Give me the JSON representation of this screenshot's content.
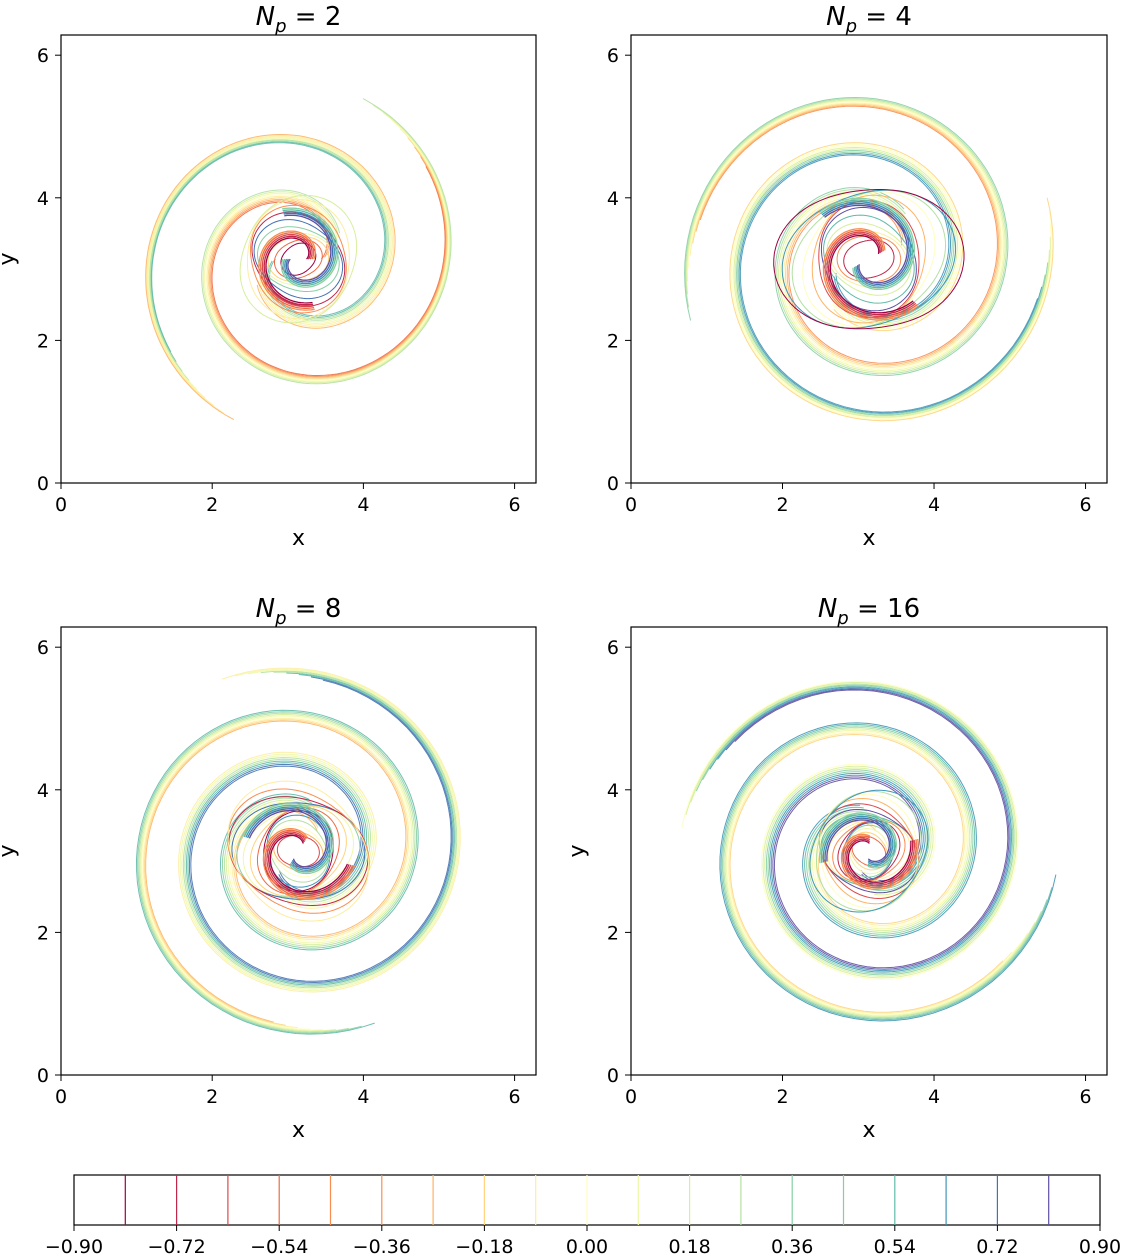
{
  "figure": {
    "colormap": "Spectral",
    "contour_levels": [
      -0.9,
      -0.81,
      -0.72,
      -0.63,
      -0.54,
      -0.45,
      -0.36,
      -0.27,
      -0.18,
      -0.09,
      0.0,
      0.09,
      0.18,
      0.27,
      0.36,
      0.45,
      0.54,
      0.63,
      0.72,
      0.81,
      0.9
    ],
    "level_colors": [
      "#9e0142",
      "#c0274a",
      "#dc494c",
      "#ee6a43",
      "#f88d52",
      "#fdb466",
      "#fed481",
      "#feeda1",
      "#fffebe",
      "#eff8a8",
      "#d7ef9b",
      "#b3e0a2",
      "#87cfa4",
      "#5fbaa8",
      "#3f96b7",
      "#4372b2",
      "#5e4fa2"
    ]
  },
  "chart_data": [
    {
      "type": "contour",
      "title": "N_p = 2",
      "title_main": "N",
      "title_sub": "p",
      "title_rest": " = 2",
      "xlabel": "x",
      "ylabel": "y",
      "xlim": [
        0,
        6.2832
      ],
      "ylim": [
        0,
        6.2832
      ],
      "xticks": [
        "0",
        "2",
        "4",
        "6"
      ],
      "yticks": [
        "0",
        "2",
        "4",
        "6"
      ],
      "center": [
        3.14,
        3.14
      ],
      "spiral_turns": 1.1,
      "outer_radius": 2.2,
      "core_radius": 0.9
    },
    {
      "type": "contour",
      "title": "N_p = 4",
      "title_main": "N",
      "title_sub": "p",
      "title_rest": " = 4",
      "xlabel": "x",
      "ylabel": "",
      "xlim": [
        0,
        6.2832
      ],
      "ylim": [
        0,
        6.2832
      ],
      "xticks": [
        "0",
        "2",
        "4",
        "6"
      ],
      "yticks": [
        "0",
        "2",
        "4",
        "6"
      ],
      "center": [
        3.14,
        3.14
      ],
      "spiral_turns": 1.4,
      "outer_radius": 2.4,
      "core_radius": 1.2
    },
    {
      "type": "contour",
      "title": "N_p = 8",
      "title_main": "N",
      "title_sub": "p",
      "title_rest": " = 8",
      "xlabel": "x",
      "ylabel": "y",
      "xlim": [
        0,
        6.2832
      ],
      "ylim": [
        0,
        6.2832
      ],
      "xticks": [
        "0",
        "2",
        "4",
        "6"
      ],
      "yticks": [
        "0",
        "2",
        "4",
        "6"
      ],
      "center": [
        3.14,
        3.14
      ],
      "spiral_turns": 1.6,
      "outer_radius": 2.4,
      "core_radius": 1.0
    },
    {
      "type": "contour",
      "title": "N_p = 16",
      "title_main": "N",
      "title_sub": "p",
      "title_rest": " = 16",
      "xlabel": "x",
      "ylabel": "y",
      "xlim": [
        0,
        6.2832
      ],
      "ylim": [
        0,
        6.2832
      ],
      "xticks": [
        "0",
        "2",
        "4",
        "6"
      ],
      "yticks": [
        "0",
        "2",
        "4",
        "6"
      ],
      "center": [
        3.14,
        3.14
      ],
      "spiral_turns": 1.7,
      "outer_radius": 2.4,
      "core_radius": 0.85
    }
  ],
  "colorbar": {
    "range": [
      -0.9,
      0.9
    ],
    "tick_values": [
      -0.9,
      -0.72,
      -0.54,
      -0.36,
      -0.18,
      0.0,
      0.18,
      0.36,
      0.54,
      0.72,
      0.9
    ],
    "tick_labels": [
      "−0.90",
      "−0.72",
      "−0.54",
      "−0.36",
      "−0.18",
      "0.00",
      "0.18",
      "0.36",
      "0.54",
      "0.72",
      "0.90"
    ],
    "line_values": [
      -0.81,
      -0.72,
      -0.63,
      -0.54,
      -0.45,
      -0.36,
      -0.27,
      -0.18,
      -0.09,
      0.0,
      0.09,
      0.18,
      0.27,
      0.36,
      0.45,
      0.54,
      0.63,
      0.72,
      0.81
    ]
  }
}
